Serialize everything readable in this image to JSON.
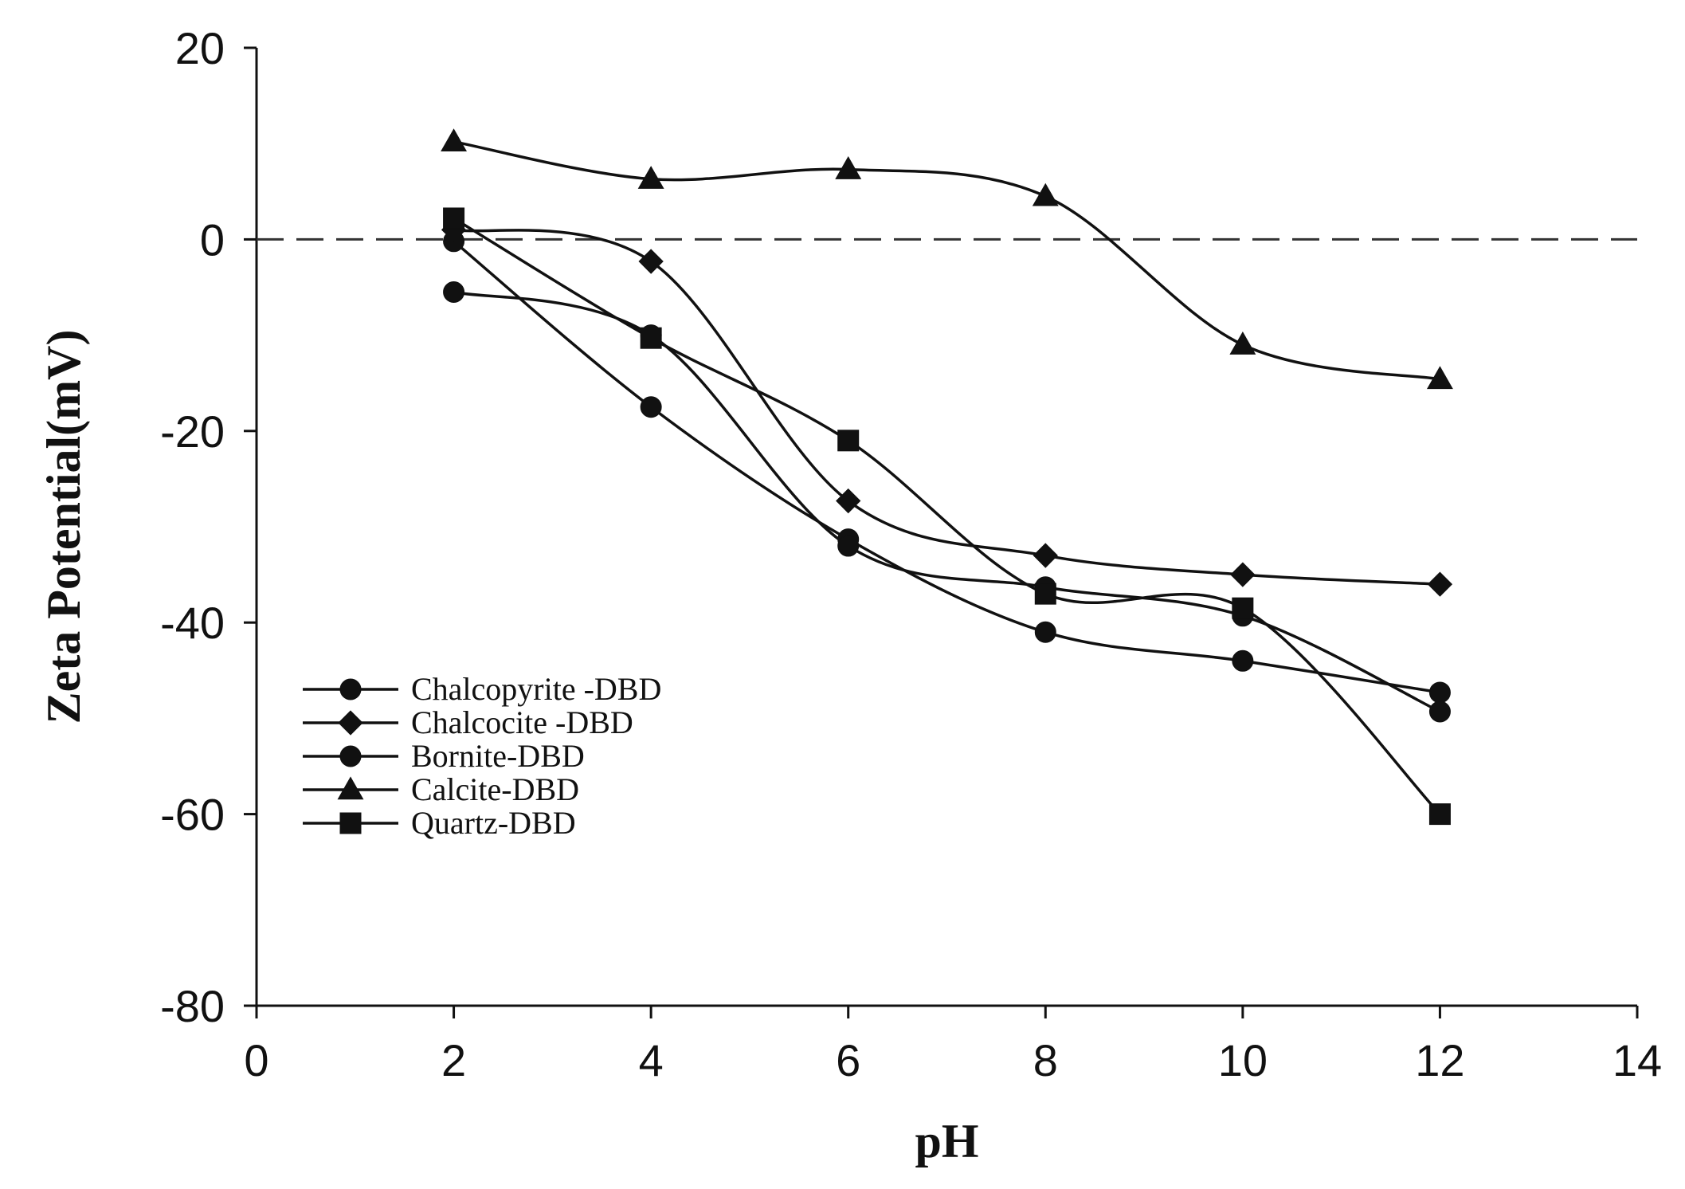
{
  "chart_data": {
    "type": "line",
    "title": "",
    "xlabel": "pH",
    "ylabel": "Zeta Potential(mV)",
    "xlim": [
      0,
      14
    ],
    "ylim": [
      -80,
      20
    ],
    "xticks": [
      0,
      2,
      4,
      6,
      8,
      10,
      12,
      14
    ],
    "yticks": [
      -80,
      -60,
      -40,
      -20,
      0,
      20
    ],
    "grid": false,
    "legend_position": "lower-left",
    "reference_line": {
      "y": 0,
      "style": "dashed"
    },
    "x": [
      2,
      4,
      6,
      8,
      10,
      12
    ],
    "series": [
      {
        "name": "Chalcopyrite -DBD",
        "marker": "circle",
        "values": [
          -0.2,
          -17.5,
          -31.3,
          -41.0,
          -44.0,
          -47.3
        ]
      },
      {
        "name": "Chalcocite -DBD",
        "marker": "diamond",
        "values": [
          1.0,
          -2.3,
          -27.3,
          -33.0,
          -35.0,
          -36.0
        ]
      },
      {
        "name": "Bornite-DBD",
        "marker": "circle",
        "values": [
          -5.5,
          -10.0,
          -32.0,
          -36.3,
          -39.3,
          -49.3
        ]
      },
      {
        "name": "Calcite-DBD",
        "marker": "triangle",
        "values": [
          10.2,
          6.3,
          7.3,
          4.5,
          -11.0,
          -14.6
        ]
      },
      {
        "name": "Quartz-DBD",
        "marker": "square",
        "values": [
          2.2,
          -10.3,
          -21.0,
          -37.0,
          -38.5,
          -60.0
        ]
      }
    ]
  }
}
